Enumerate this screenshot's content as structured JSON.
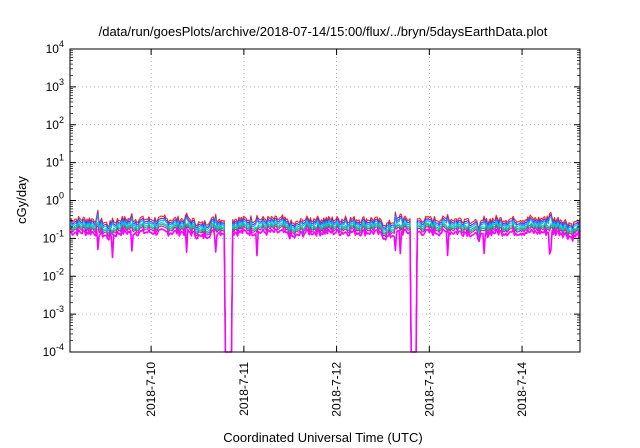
{
  "chart_data": {
    "type": "line",
    "title": "/data/run/goesPlots/archive/2018-07-14/15:00/flux/../bryn/5daysEarthData.plot",
    "xlabel": "Coordinated Universal Time (UTC)",
    "ylabel": "cGy/day",
    "yscale": "log",
    "ylim": [
      0.0001,
      10000
    ],
    "y_ticks": [
      {
        "base": "10",
        "exp": "-4"
      },
      {
        "base": "10",
        "exp": "-3"
      },
      {
        "base": "10",
        "exp": "-2"
      },
      {
        "base": "10",
        "exp": "-1"
      },
      {
        "base": "10",
        "exp": "0"
      },
      {
        "base": "10",
        "exp": "1"
      },
      {
        "base": "10",
        "exp": "2"
      },
      {
        "base": "10",
        "exp": "3"
      },
      {
        "base": "10",
        "exp": "4"
      }
    ],
    "xlim": [
      "2018-07-09 03:00",
      "2018-07-14 15:00"
    ],
    "x_ticks": [
      "2018-7-10",
      "2018-7-11",
      "2018-7-12",
      "2018-7-13",
      "2018-7-14"
    ],
    "x_tick_dates": [
      "2018-07-10 00:00",
      "2018-07-11 00:00",
      "2018-07-12 00:00",
      "2018-07-13 00:00",
      "2018-07-14 00:00"
    ],
    "grid": true,
    "legend": "none",
    "data_gaps": [
      {
        "start": "2018-07-10 19:45",
        "end": "2018-07-10 20:15"
      },
      {
        "start": "2018-07-12 19:40",
        "end": "2018-07-12 20:05"
      }
    ],
    "series_style": {
      "colors": [
        "#ff2020",
        "#3a3aff",
        "#20a0ff",
        "#00d0c0",
        "#20b070",
        "#c020c0",
        "#ff00ff"
      ],
      "levels": [
        0.31,
        0.27,
        0.24,
        0.21,
        0.19,
        0.17,
        0.14
      ],
      "daily_dip_hour": 13
    }
  }
}
